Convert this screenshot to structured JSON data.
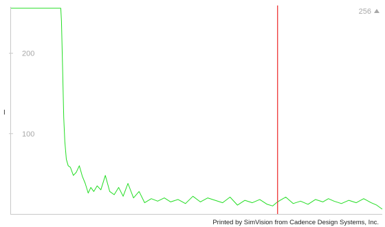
{
  "chart_data": {
    "type": "line",
    "title": "",
    "xlabel": "",
    "ylabel": "I",
    "ylim": [
      0,
      256
    ],
    "xlim": [
      0,
      100
    ],
    "y_ticks": [
      {
        "value": 100,
        "label": "100"
      },
      {
        "value": 200,
        "label": "200"
      },
      {
        "value": 256,
        "label": "256"
      }
    ],
    "grid": false,
    "legend": "none",
    "colors": {
      "trace": "#22dd22",
      "cursor": "#ee3333",
      "axis": "#c8c8c8",
      "tick_label": "#a8a8a8"
    },
    "cursor_x": 71.8,
    "series": [
      {
        "x": [
          0,
          13.4,
          13.6,
          13.9,
          14.2,
          14.5,
          14.9,
          15.4,
          16.0,
          16.8,
          17.6,
          18.4,
          19.2,
          20.0,
          20.8,
          21.5,
          22.3,
          23.2,
          24.2,
          25.4,
          26.6,
          27.8,
          29.0,
          30.2,
          31.5,
          33.0,
          34.5,
          36.0,
          37.8,
          39.5,
          41.3,
          43.0,
          45.0,
          47.0,
          49.0,
          51.0,
          53.0,
          55.0,
          57.0,
          59.0,
          61.0,
          63.0,
          65.0,
          67.0,
          69.0,
          70.5,
          71.5,
          72.5,
          74.0,
          76.0,
          78.0,
          80.0,
          82.0,
          84.0,
          85.5,
          87.0,
          89.0,
          91.0,
          93.0,
          95.0,
          97.0,
          98.5,
          100.0
        ],
        "y": [
          256,
          256,
          240,
          180,
          120,
          90,
          68,
          60,
          58,
          48,
          52,
          60,
          47,
          38,
          26,
          33,
          28,
          35,
          30,
          48,
          28,
          24,
          33,
          22,
          38,
          20,
          28,
          14,
          19,
          16,
          20,
          15,
          18,
          13,
          22,
          15,
          20,
          17,
          14,
          21,
          11,
          17,
          14,
          18,
          12,
          10,
          14,
          17,
          21,
          13,
          16,
          12,
          18,
          15,
          19,
          16,
          13,
          17,
          14,
          19,
          14,
          11,
          6
        ]
      }
    ]
  },
  "footer": {
    "credit": "Printed by SimVision from Cadence Design Systems, Inc."
  }
}
